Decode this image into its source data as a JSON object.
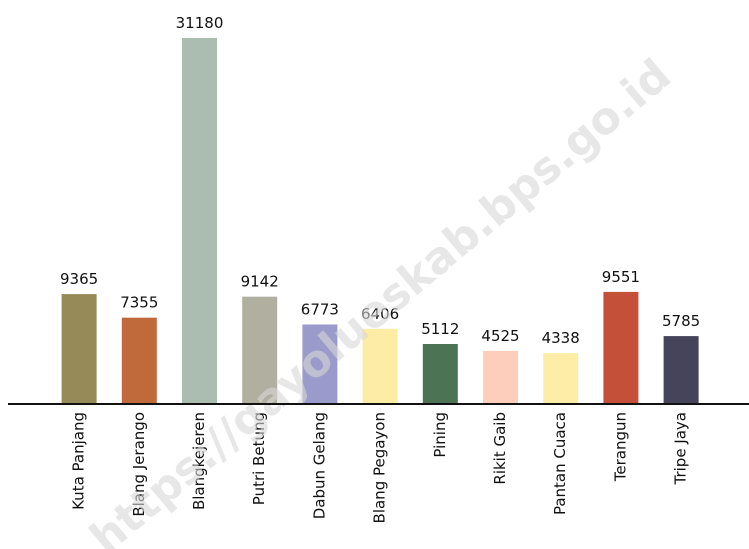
{
  "chart_data": {
    "type": "bar",
    "categories": [
      "Kuta Panjang",
      "Blang Jerango",
      "Blangkejeren",
      "Putri Betung",
      "Dabun Gelang",
      "Blang Pegayon",
      "Pining",
      "Rikit Gaib",
      "Pantan Cuaca",
      "Terangun",
      "Tripe Jaya"
    ],
    "values": [
      9365,
      7355,
      31180,
      9142,
      6773,
      6406,
      5112,
      4525,
      4338,
      9551,
      5785
    ],
    "colors": [
      "#958a58",
      "#c0693a",
      "#abbdb0",
      "#b1afa0",
      "#9b9bcb",
      "#fdeca3",
      "#4d7355",
      "#fdcfba",
      "#fdeda6",
      "#c4503a",
      "#45445a"
    ],
    "ylim": [
      0,
      31180
    ],
    "watermark": "https://gayolueskab.bps.go.id"
  }
}
